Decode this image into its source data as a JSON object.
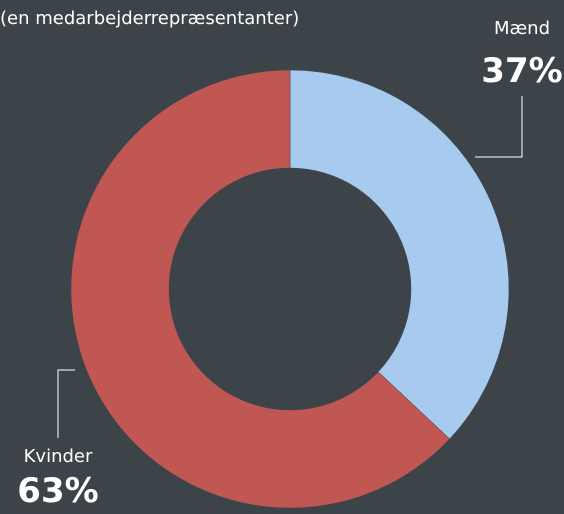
{
  "chart_data": {
    "type": "donut",
    "subtitle": "(en medarbejderrepræsentanter)",
    "categories": [
      "Mænd",
      "Kvinder"
    ],
    "values": [
      37,
      63
    ],
    "value_labels": [
      "37%",
      "63%"
    ],
    "colors": [
      "#a7cbee",
      "#c05753"
    ]
  }
}
